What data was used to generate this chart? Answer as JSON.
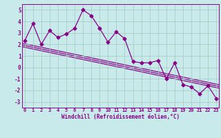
{
  "title": "",
  "xlabel": "Windchill (Refroidissement éolien,°C)",
  "ylabel": "",
  "bg_color": "#c8eaea",
  "line_color": "#880088",
  "x_data": [
    0,
    1,
    2,
    3,
    4,
    5,
    6,
    7,
    8,
    9,
    10,
    11,
    12,
    13,
    14,
    15,
    16,
    17,
    18,
    19,
    20,
    21,
    22,
    23
  ],
  "y_data": [
    2.3,
    3.8,
    2.0,
    3.2,
    2.6,
    2.9,
    3.4,
    5.0,
    4.5,
    3.4,
    2.2,
    3.1,
    2.5,
    0.5,
    0.4,
    0.4,
    0.6,
    -1.0,
    0.4,
    -1.5,
    -1.7,
    -2.3,
    -1.6,
    -2.7
  ],
  "reg_lines": [
    [
      2.1,
      -1.5
    ],
    [
      1.95,
      -1.65
    ],
    [
      1.8,
      -1.8
    ]
  ],
  "ylim": [
    -3.5,
    5.5
  ],
  "xlim": [
    -0.3,
    23.3
  ],
  "yticks": [
    -3,
    -2,
    -1,
    0,
    1,
    2,
    3,
    4,
    5
  ],
  "xticks": [
    0,
    1,
    2,
    3,
    4,
    5,
    6,
    7,
    8,
    9,
    10,
    11,
    12,
    13,
    14,
    15,
    16,
    17,
    18,
    19,
    20,
    21,
    22,
    23
  ],
  "grid_color": "#a0c8c0",
  "marker": "D",
  "markersize": 2.5,
  "linewidth": 0.9,
  "tick_fontsize": 5.0,
  "xlabel_fontsize": 5.5
}
